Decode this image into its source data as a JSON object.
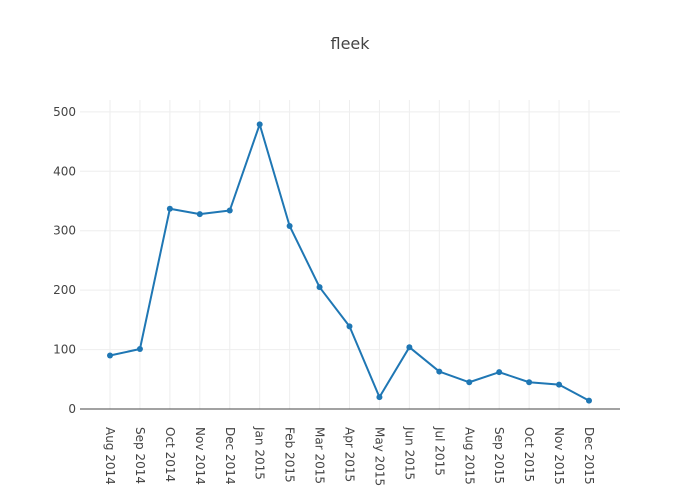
{
  "chart_data": {
    "type": "line",
    "title": "fleek",
    "xlabel": "",
    "ylabel": "",
    "categories": [
      "Aug 2014",
      "Sep 2014",
      "Oct 2014",
      "Nov 2014",
      "Dec 2014",
      "Jan 2015",
      "Feb 2015",
      "Mar 2015",
      "Apr 2015",
      "May 2015",
      "Jun 2015",
      "Jul 2015",
      "Aug 2015",
      "Sep 2015",
      "Oct 2015",
      "Nov 2015",
      "Dec 2015"
    ],
    "series": [
      {
        "values": [
          90,
          101,
          337,
          328,
          334,
          479,
          308,
          205,
          139,
          20,
          104,
          63,
          45,
          62,
          45,
          41,
          14
        ]
      }
    ],
    "ylim": [
      0,
      520
    ],
    "yticks": [
      0,
      100,
      200,
      300,
      400,
      500
    ],
    "grid": true,
    "legend": "none",
    "colors": {
      "line": "#1f77b4",
      "grid": "#eeeeee",
      "zeroline": "#444444",
      "text": "#444444"
    }
  }
}
